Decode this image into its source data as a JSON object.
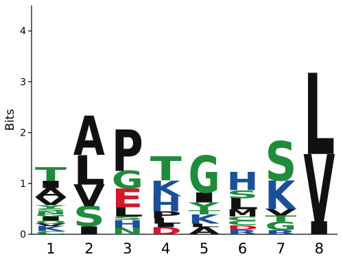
{
  "chart_data": {
    "type": "sequence-logo",
    "ylabel": "Bits",
    "ylim": [
      0,
      4.5
    ],
    "yticks": [
      "0",
      "1",
      "2",
      "3",
      "4"
    ],
    "xtick_labels": [
      "1",
      "2",
      "3",
      "4",
      "5",
      "6",
      "7",
      "8"
    ],
    "colors": {
      "polar": "#1e8c3a",
      "basic": "#1a4f9c",
      "acidic": "#d6162b",
      "hydrophobic": "#111111"
    },
    "positions": [
      {
        "position": "1",
        "letters": [
          {
            "letter": "C",
            "height": 0.06,
            "color": "polar"
          },
          {
            "letter": "K",
            "height": 0.1,
            "color": "basic"
          },
          {
            "letter": "V",
            "height": 0.05,
            "color": "hydrophobic"
          },
          {
            "letter": "Q",
            "height": 0.06,
            "color": "polar"
          },
          {
            "letter": "I",
            "height": 0.08,
            "color": "hydrophobic"
          },
          {
            "letter": "G",
            "height": 0.05,
            "color": "polar"
          },
          {
            "letter": "N",
            "height": 0.05,
            "color": "polar"
          },
          {
            "letter": "S",
            "height": 0.06,
            "color": "polar"
          },
          {
            "letter": "Y",
            "height": 0.06,
            "color": "polar"
          },
          {
            "letter": "V",
            "height": 0.16,
            "color": "hydrophobic"
          },
          {
            "letter": "A",
            "height": 0.18,
            "color": "hydrophobic"
          },
          {
            "letter": "I",
            "height": 0.14,
            "color": "hydrophobic"
          },
          {
            "letter": "T",
            "height": 0.27,
            "color": "polar"
          }
        ]
      },
      {
        "position": "2",
        "letters": [
          {
            "letter": "I",
            "height": 0.16,
            "color": "hydrophobic"
          },
          {
            "letter": "S",
            "height": 0.39,
            "color": "polar"
          },
          {
            "letter": "V",
            "height": 0.43,
            "color": "hydrophobic"
          },
          {
            "letter": "L",
            "height": 0.58,
            "color": "hydrophobic"
          },
          {
            "letter": "A",
            "height": 0.77,
            "color": "hydrophobic"
          }
        ]
      },
      {
        "position": "3",
        "letters": [
          {
            "letter": "N",
            "height": 0.13,
            "color": "polar"
          },
          {
            "letter": "H",
            "height": 0.15,
            "color": "basic"
          },
          {
            "letter": "S",
            "height": 0.07,
            "color": "polar"
          },
          {
            "letter": "L",
            "height": 0.18,
            "color": "hydrophobic"
          },
          {
            "letter": "E",
            "height": 0.37,
            "color": "acidic"
          },
          {
            "letter": "G",
            "height": 0.35,
            "color": "polar"
          },
          {
            "letter": "P",
            "height": 0.82,
            "color": "hydrophobic"
          }
        ]
      },
      {
        "position": "4",
        "letters": [
          {
            "letter": "D",
            "height": 0.14,
            "color": "acidic"
          },
          {
            "letter": "I",
            "height": 0.07,
            "color": "hydrophobic"
          },
          {
            "letter": "L",
            "height": 0.11,
            "color": "hydrophobic"
          },
          {
            "letter": "P",
            "height": 0.13,
            "color": "hydrophobic"
          },
          {
            "letter": "H",
            "height": 0.3,
            "color": "basic"
          },
          {
            "letter": "K",
            "height": 0.31,
            "color": "basic"
          },
          {
            "letter": "T",
            "height": 0.47,
            "color": "polar"
          }
        ]
      },
      {
        "position": "5",
        "letters": [
          {
            "letter": "A",
            "height": 0.14,
            "color": "hydrophobic"
          },
          {
            "letter": "L",
            "height": 0.07,
            "color": "hydrophobic"
          },
          {
            "letter": "K",
            "height": 0.18,
            "color": "basic"
          },
          {
            "letter": "T",
            "height": 0.08,
            "color": "polar"
          },
          {
            "letter": "Y",
            "height": 0.16,
            "color": "polar"
          },
          {
            "letter": "I",
            "height": 0.19,
            "color": "hydrophobic"
          },
          {
            "letter": "G",
            "height": 0.73,
            "color": "polar"
          }
        ]
      },
      {
        "position": "6",
        "letters": [
          {
            "letter": "R",
            "height": 0.09,
            "color": "basic"
          },
          {
            "letter": "D",
            "height": 0.09,
            "color": "acidic"
          },
          {
            "letter": "C",
            "height": 0.09,
            "color": "polar"
          },
          {
            "letter": "C",
            "height": 0.08,
            "color": "polar"
          },
          {
            "letter": "M",
            "height": 0.14,
            "color": "hydrophobic"
          },
          {
            "letter": "L",
            "height": 0.22,
            "color": "hydrophobic"
          },
          {
            "letter": "S",
            "height": 0.16,
            "color": "polar"
          },
          {
            "letter": "H",
            "height": 0.36,
            "color": "basic"
          }
        ]
      },
      {
        "position": "7",
        "letters": [
          {
            "letter": "R",
            "height": 0.08,
            "color": "basic"
          },
          {
            "letter": "G",
            "height": 0.17,
            "color": "polar"
          },
          {
            "letter": "T",
            "height": 0.12,
            "color": "polar"
          },
          {
            "letter": "V",
            "height": 0.13,
            "color": "hydrophobic"
          },
          {
            "letter": "K",
            "height": 0.56,
            "color": "basic"
          },
          {
            "letter": "S",
            "height": 0.77,
            "color": "polar"
          }
        ]
      },
      {
        "position": "8",
        "letters": [
          {
            "letter": "I",
            "height": 0.25,
            "color": "hydrophobic"
          },
          {
            "letter": "V",
            "height": 1.33,
            "color": "hydrophobic"
          },
          {
            "letter": "L",
            "height": 1.6,
            "color": "hydrophobic"
          }
        ]
      }
    ]
  }
}
